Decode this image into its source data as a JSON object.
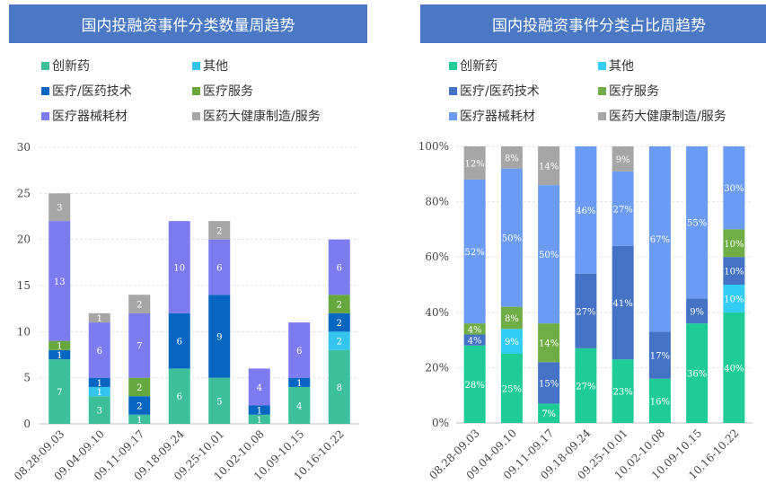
{
  "chart_data": [
    {
      "type": "bar",
      "stacked": true,
      "title": "国内投融资事件分类数量周趋势",
      "categories": [
        "08.28-09.03",
        "09.04-09.10",
        "09.11-09.17",
        "09.18-09.24",
        "09.25-10.01",
        "10.02-10.08",
        "10.09-10.15",
        "10.16-10.22"
      ],
      "ylim": [
        0,
        30
      ],
      "yticks": [
        "0",
        "5",
        "10",
        "15",
        "20",
        "25",
        "30"
      ],
      "series": [
        {
          "name": "创新药",
          "color": "#3dbf9c",
          "values": [
            7,
            3,
            1,
            6,
            5,
            1,
            4,
            8
          ],
          "labels": [
            "7",
            "3",
            "1",
            "6",
            "5",
            "1",
            "4",
            "8"
          ]
        },
        {
          "name": "其他",
          "color": "#33c5ee",
          "values": [
            0,
            1,
            0,
            0,
            0,
            0,
            0,
            2
          ],
          "labels": [
            "",
            "1",
            "",
            "",
            "",
            "",
            "",
            "2"
          ]
        },
        {
          "name": "医疗/医药技术",
          "color": "#0766c2",
          "values": [
            1,
            1,
            2,
            6,
            9,
            1,
            1,
            2
          ],
          "labels": [
            "1",
            "1",
            "2",
            "6",
            "9",
            "1",
            "1",
            "2"
          ]
        },
        {
          "name": "医疗服务",
          "color": "#66a83d",
          "values": [
            1,
            0,
            2,
            0,
            0,
            0,
            0,
            2
          ],
          "labels": [
            "1",
            "",
            "2",
            "",
            "",
            "",
            "",
            "2"
          ]
        },
        {
          "name": "医疗器械耗材",
          "color": "#7c7cf0",
          "values": [
            13,
            6,
            7,
            10,
            6,
            4,
            6,
            6
          ],
          "labels": [
            "13",
            "6",
            "7",
            "10",
            "6",
            "4",
            "6",
            "6"
          ]
        },
        {
          "name": "医药大健康制造/服务",
          "color": "#a6a6a6",
          "values": [
            3,
            1,
            2,
            0,
            2,
            0,
            0,
            0
          ],
          "labels": [
            "3",
            "1",
            "2",
            "",
            "2",
            "",
            "",
            ""
          ]
        }
      ]
    },
    {
      "type": "bar",
      "stacked": true,
      "percent": true,
      "title": "国内投融资事件分类占比周趋势",
      "categories": [
        "08.28-09.03",
        "09.04-09.10",
        "09.11-09.17",
        "09.18-09.24",
        "09.25-10.01",
        "10.02-10.08",
        "10.09-10.15",
        "10.16-10.22"
      ],
      "ylim": [
        0,
        100
      ],
      "yticks": [
        "0%",
        "20%",
        "40%",
        "60%",
        "80%",
        "100%"
      ],
      "series": [
        {
          "name": "创新药",
          "color": "#1fcc98",
          "values": [
            28,
            25,
            7,
            27,
            23,
            16,
            36,
            40
          ],
          "labels": [
            "28%",
            "25%",
            "7%",
            "27%",
            "23%",
            "16%",
            "36%",
            "40%"
          ]
        },
        {
          "name": "其他",
          "color": "#33ccf5",
          "values": [
            0,
            9,
            0,
            0,
            0,
            0,
            0,
            10
          ],
          "labels": [
            "",
            "9%",
            "",
            "",
            "",
            "",
            "",
            "10%"
          ]
        },
        {
          "name": "医疗/医药技术",
          "color": "#4472c4",
          "values": [
            4,
            0,
            15,
            27,
            41,
            17,
            9,
            10
          ],
          "labels": [
            "4%",
            "",
            "15%",
            "27%",
            "41%",
            "17%",
            "9%",
            "10%"
          ]
        },
        {
          "name": "医疗服务",
          "color": "#70ad47",
          "values": [
            4,
            8,
            14,
            0,
            0,
            0,
            0,
            10
          ],
          "labels": [
            "4%",
            "8%",
            "14%",
            "",
            "",
            "",
            "",
            "10%"
          ]
        },
        {
          "name": "医疗器械耗材",
          "color": "#6b9bf2",
          "values": [
            52,
            50,
            50,
            46,
            27,
            67,
            55,
            30
          ],
          "labels": [
            "52%",
            "50%",
            "50%",
            "46%",
            "27%",
            "67%",
            "55%",
            "30%"
          ]
        },
        {
          "name": "医药大健康制造/服务",
          "color": "#a6a6a6",
          "values": [
            12,
            8,
            14,
            0,
            9,
            0,
            0,
            0
          ],
          "labels": [
            "12%",
            "8%",
            "14%",
            "",
            "9%",
            "",
            "",
            ""
          ]
        }
      ]
    }
  ]
}
